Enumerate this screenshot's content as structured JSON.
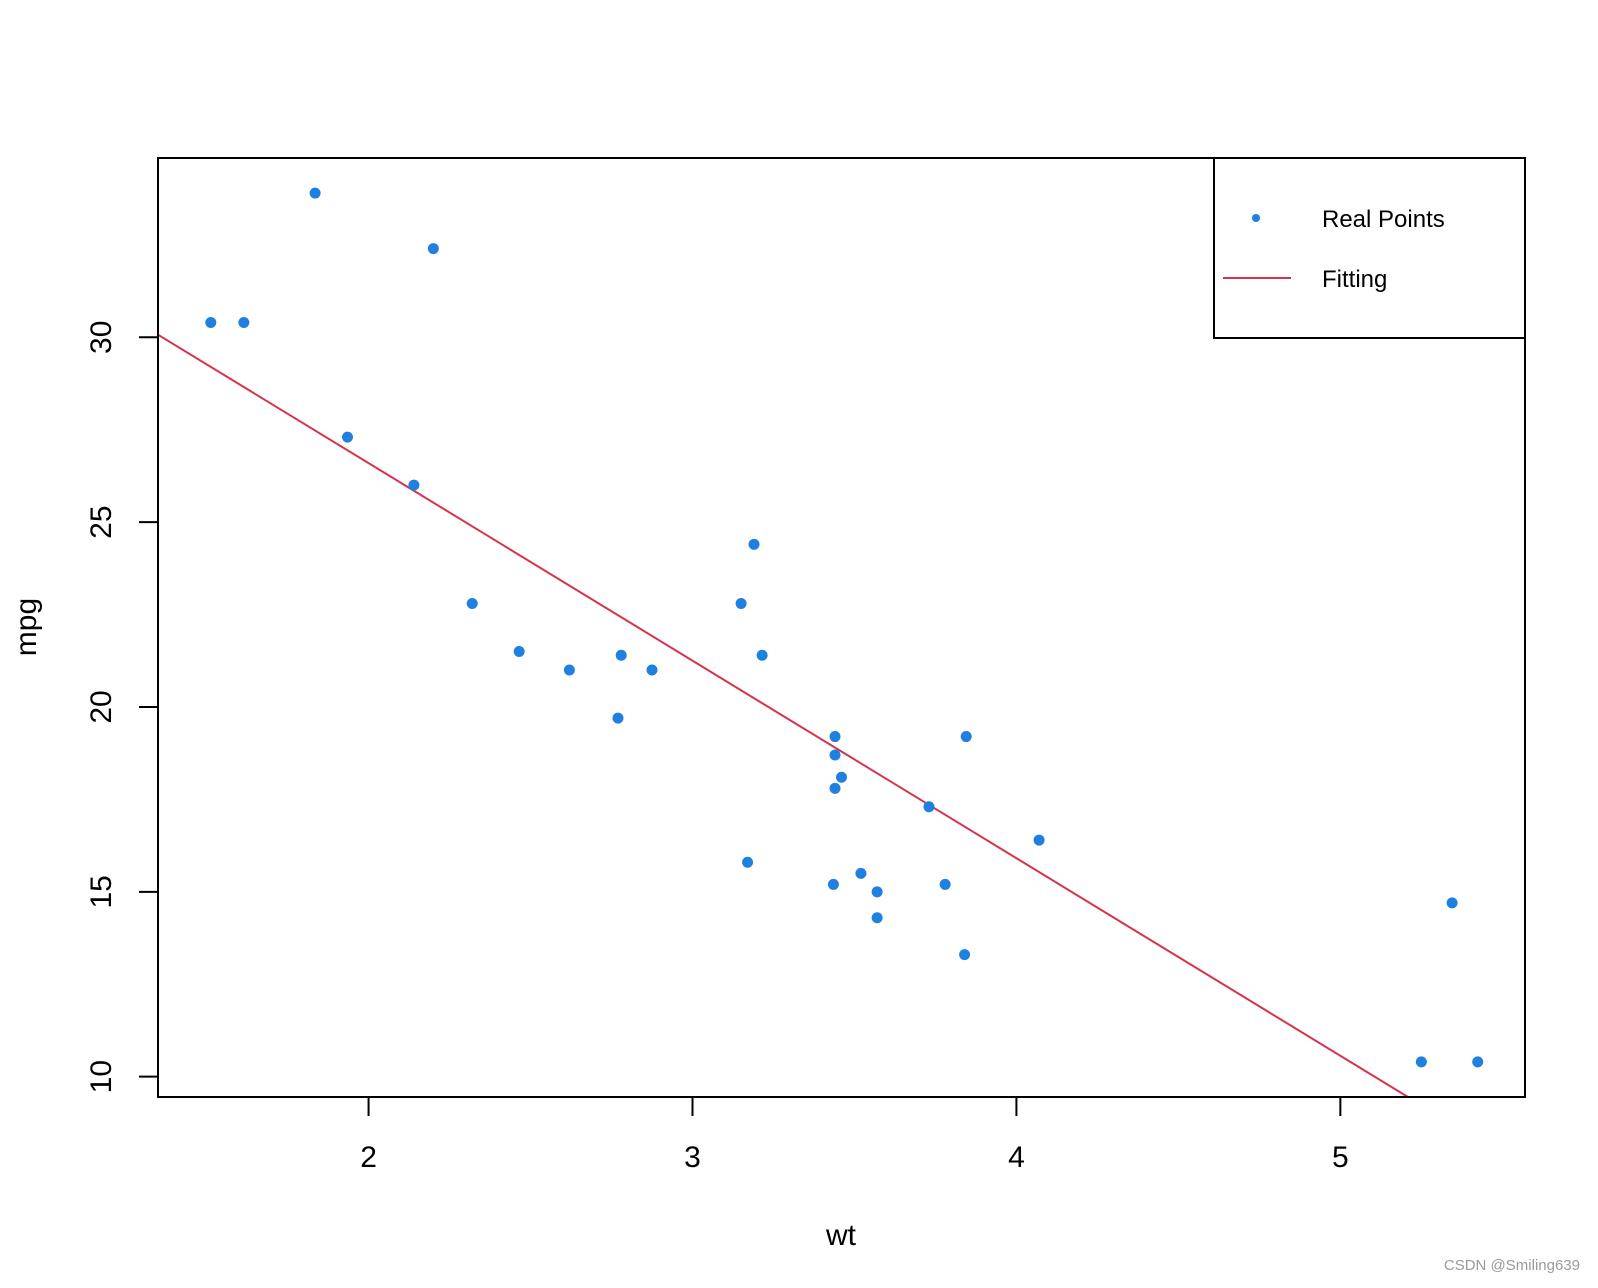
{
  "chart_data": {
    "type": "scatter",
    "title": "",
    "xlabel": "wt",
    "ylabel": "mpg",
    "xlim": [
      1.35,
      5.57
    ],
    "ylim": [
      9.45,
      34.85
    ],
    "x_ticks": [
      2,
      3,
      4,
      5
    ],
    "y_ticks": [
      10,
      15,
      20,
      25,
      30
    ],
    "grid": false,
    "legend_position": "top-right",
    "series": [
      {
        "name": "Real Points",
        "kind": "points",
        "color": "#2080e0",
        "points": [
          [
            1.513,
            30.4
          ],
          [
            1.615,
            30.4
          ],
          [
            1.835,
            33.9
          ],
          [
            1.935,
            27.3
          ],
          [
            2.14,
            26.0
          ],
          [
            2.2,
            32.4
          ],
          [
            2.32,
            22.8
          ],
          [
            2.465,
            21.5
          ],
          [
            2.62,
            21.0
          ],
          [
            2.77,
            19.7
          ],
          [
            2.78,
            21.4
          ],
          [
            2.875,
            21.0
          ],
          [
            3.15,
            22.8
          ],
          [
            3.17,
            15.8
          ],
          [
            3.19,
            24.4
          ],
          [
            3.215,
            21.4
          ],
          [
            3.435,
            15.2
          ],
          [
            3.44,
            18.7
          ],
          [
            3.44,
            19.2
          ],
          [
            3.44,
            17.8
          ],
          [
            3.46,
            18.1
          ],
          [
            3.52,
            15.5
          ],
          [
            3.57,
            15.0
          ],
          [
            3.57,
            14.3
          ],
          [
            3.73,
            17.3
          ],
          [
            3.78,
            15.2
          ],
          [
            3.84,
            13.3
          ],
          [
            3.845,
            19.2
          ],
          [
            4.07,
            16.4
          ],
          [
            5.25,
            10.4
          ],
          [
            5.345,
            14.7
          ],
          [
            5.424,
            10.4
          ]
        ]
      },
      {
        "name": "Fitting",
        "kind": "line",
        "color": "#d6334f",
        "intercept": 37.285,
        "slope": -5.344
      }
    ]
  },
  "footer": {
    "watermark": "CSDN @Smiling639"
  }
}
